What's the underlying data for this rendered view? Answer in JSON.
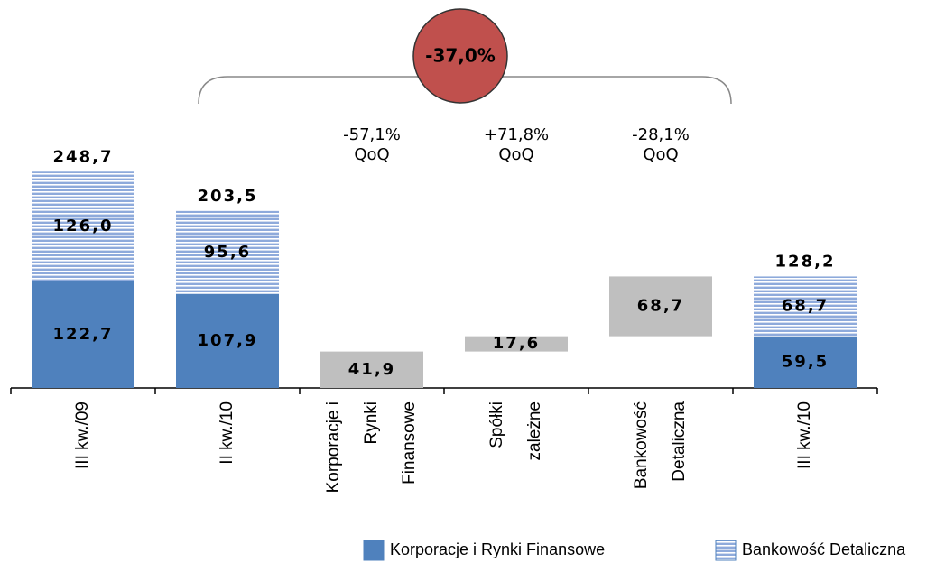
{
  "chart_data": {
    "type": "waterfall",
    "categories": [
      "III kw./09",
      "II kw./10",
      "Korporacje i\nRynki\nFinansowe",
      "Spółki\nzależne",
      "Bankowość\nDetaliczna",
      "III kw./10"
    ],
    "series": [
      {
        "name": "Korporacje i Rynki Finansowe",
        "color": "#4f81bd",
        "pattern": "solid",
        "values": [
          122.7,
          107.9,
          null,
          null,
          null,
          59.5
        ],
        "value_labels": [
          "122,7",
          "107,9",
          null,
          null,
          null,
          "59,5"
        ]
      },
      {
        "name": "Bankowość Detaliczna",
        "color": "#8eaadb",
        "pattern": "horizontal-stripes",
        "values": [
          126.0,
          95.6,
          null,
          null,
          null,
          68.7
        ],
        "value_labels": [
          "126,0",
          "95,6",
          null,
          null,
          null,
          "68,7"
        ]
      }
    ],
    "totals": [
      248.7,
      203.5,
      null,
      null,
      null,
      128.2
    ],
    "total_labels": [
      "248,7",
      "203,5",
      null,
      null,
      null,
      "128,2"
    ],
    "changes": {
      "color": "#bfbfbf",
      "values": [
        null,
        null,
        41.9,
        17.6,
        68.7,
        null
      ],
      "value_labels": [
        null,
        null,
        "41,9",
        "17,6",
        "68,7",
        null
      ]
    },
    "change_labels": [
      null,
      null,
      "-57,1%\nQoQ",
      "+71,8%\nQoQ",
      "-28,1%\nQoQ",
      null
    ],
    "total_change": "-37,0%",
    "ylim": [
      0,
      250
    ]
  }
}
